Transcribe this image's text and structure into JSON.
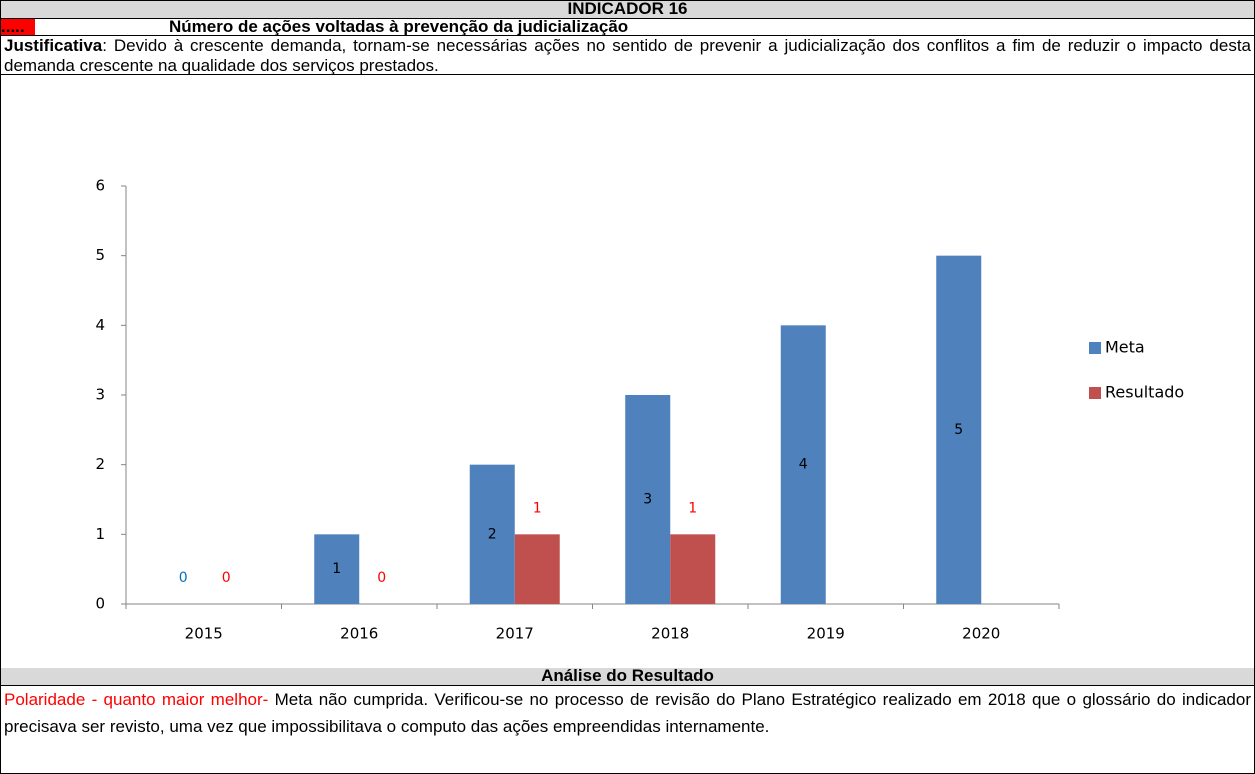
{
  "header": {
    "title": "INDICADOR 16",
    "marker": ".....",
    "subtitle": "Número de ações voltadas à prevenção da judicialização"
  },
  "justification": {
    "label": "Justificativa",
    "text": ": Devido à crescente demanda, tornam-se necessárias ações no sentido de prevenir a judicialização dos conflitos a fim de reduzir o impacto desta demanda crescente na qualidade dos serviços prestados."
  },
  "chart_data": {
    "type": "bar",
    "categories": [
      "2015",
      "2016",
      "2017",
      "2018",
      "2019",
      "2020"
    ],
    "series": [
      {
        "name": "Meta",
        "color": "#4f81bd",
        "values": [
          0,
          1,
          2,
          3,
          4,
          5
        ]
      },
      {
        "name": "Resultado",
        "color": "#c0504d",
        "values": [
          0,
          0,
          1,
          1,
          null,
          null
        ]
      }
    ],
    "ylim": [
      0,
      6
    ],
    "yticks": [
      0,
      1,
      2,
      3,
      4,
      5,
      6
    ],
    "grid": false,
    "legend": "right"
  },
  "analysis": {
    "title": "Análise do Resultado",
    "highlight": "Polaridade - quanto maior melhor-",
    "text": " Meta não cumprida. Verificou-se no processo de revisão do Plano Estratégico realizado em 2018 que o glossário do indicador precisava ser revisto, uma vez que impossibilitava o computo das ações empreendidas internamente."
  }
}
